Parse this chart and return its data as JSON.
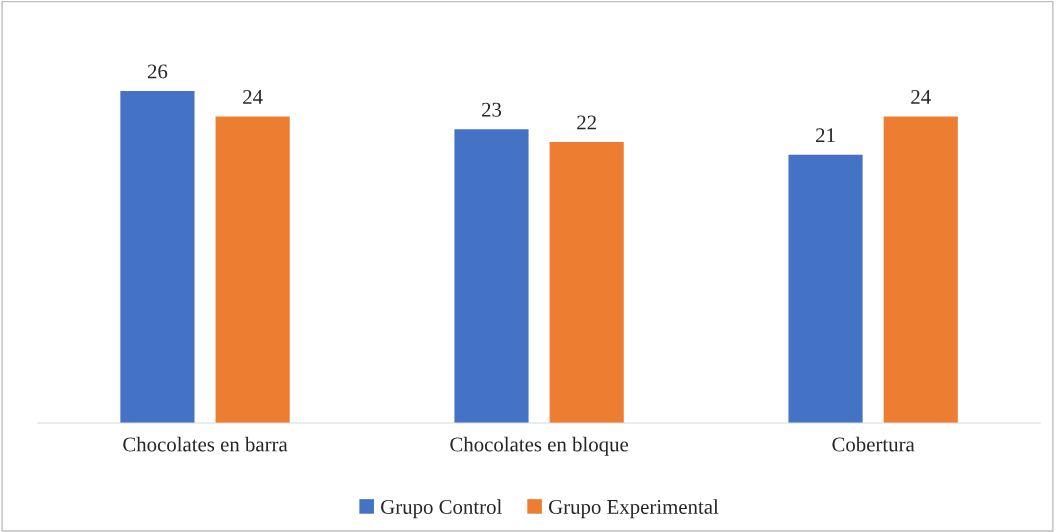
{
  "chart_data": {
    "type": "bar",
    "categories": [
      "Chocolates en barra",
      "Chocolates en bloque",
      "Cobertura"
    ],
    "series": [
      {
        "name": "Grupo Control",
        "color": "#4472c4",
        "values": [
          26,
          23,
          21
        ]
      },
      {
        "name": "Grupo Experimental",
        "color": "#ed7d31",
        "values": [
          24,
          22,
          24
        ]
      }
    ],
    "data_labels": true,
    "legend": "bottom",
    "grid": false,
    "tick_labels": "x"
  }
}
